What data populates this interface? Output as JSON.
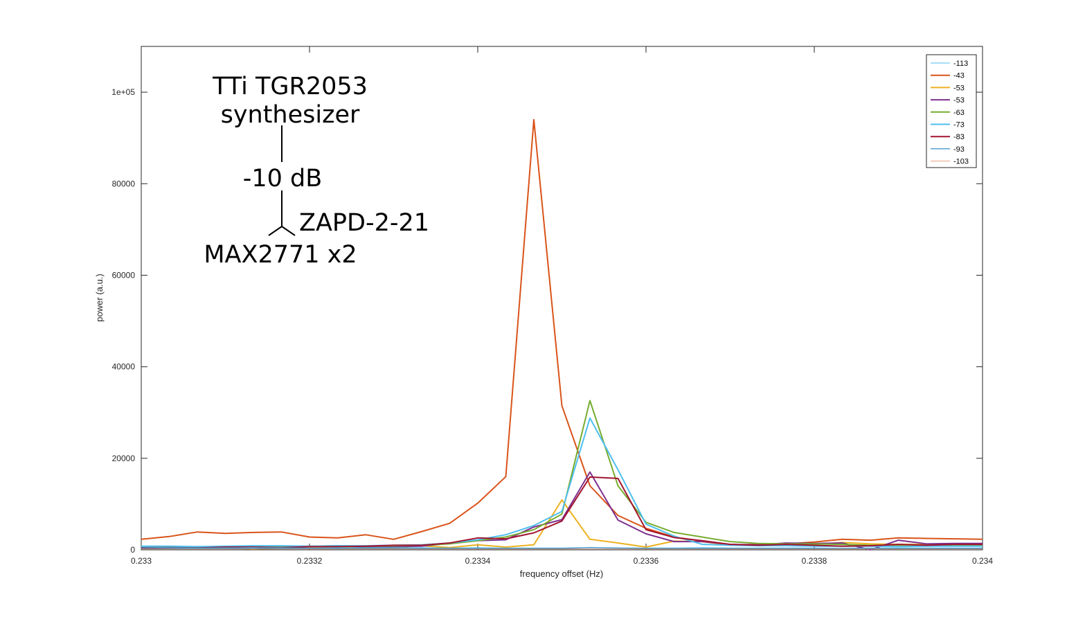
{
  "chart_data": {
    "type": "line",
    "xlabel": "frequency offset (Hz)",
    "ylabel": "power (a.u.)",
    "xlim": [
      0.233,
      0.234
    ],
    "ylim": [
      0,
      110000
    ],
    "x_ticks": [
      0.233,
      0.2332,
      0.2334,
      0.2336,
      0.2338,
      0.234
    ],
    "x_tick_labels": [
      "0.233",
      "0.2332",
      "0.2334",
      "0.2336",
      "0.2338",
      "0.234"
    ],
    "y_ticks": [
      0,
      20000,
      40000,
      60000,
      80000,
      100000
    ],
    "y_tick_labels": [
      "0",
      "20000",
      "40000",
      "60000",
      "80000",
      "1e+05"
    ],
    "grid": false,
    "legend_position": "top-right",
    "x": [
      0.233,
      0.2330333,
      0.2330667,
      0.2331,
      0.2331333,
      0.2331667,
      0.2332,
      0.2332333,
      0.2332667,
      0.2333,
      0.2333333,
      0.2333667,
      0.2334,
      0.2334333,
      0.2334667,
      0.2335,
      0.2335333,
      0.2335667,
      0.2336,
      0.2336333,
      0.2336667,
      0.2337,
      0.2337333,
      0.2337667,
      0.2338,
      0.2338333,
      0.2338667,
      0.2339,
      0.2339333,
      0.2339667,
      0.234
    ],
    "series": [
      {
        "name": "-113",
        "color": "#4dbeee",
        "width": 1,
        "values": [
          600,
          500,
          400,
          450,
          500,
          450,
          400,
          450,
          500,
          500,
          450,
          400,
          450,
          400,
          400,
          400,
          450,
          400,
          400,
          400,
          450,
          400,
          400,
          400,
          400,
          350,
          400,
          400,
          400,
          400,
          400
        ]
      },
      {
        "name": "-43",
        "color": "#d95319",
        "width": 2,
        "values": [
          2300,
          2900,
          3900,
          3600,
          3800,
          3900,
          2800,
          2600,
          3300,
          2300,
          4000,
          5800,
          10200,
          16000,
          94000,
          31500,
          14000,
          7500,
          4700,
          2800,
          1900,
          1100,
          1200,
          1300,
          1700,
          2300,
          2100,
          2600,
          2500,
          2400,
          2300
        ]
      },
      {
        "name": "-53",
        "color": "#edb120",
        "width": 2,
        "values": [
          500,
          300,
          500,
          400,
          200,
          300,
          500,
          600,
          400,
          500,
          900,
          500,
          1100,
          600,
          1100,
          10900,
          2300,
          1500,
          600,
          1900,
          1800,
          1000,
          1100,
          1200,
          1200,
          1600,
          1300,
          1200,
          1200,
          1200,
          1200
        ]
      },
      {
        "name": "-53",
        "color": "#7e2f8e",
        "width": 2,
        "values": [
          600,
          400,
          700,
          500,
          600,
          300,
          700,
          900,
          600,
          700,
          800,
          1400,
          2000,
          2200,
          5000,
          6600,
          17000,
          6500,
          3500,
          1800,
          1800,
          1200,
          1100,
          1500,
          1400,
          1500,
          0,
          2100,
          1300,
          1400,
          1400
        ]
      },
      {
        "name": "-63",
        "color": "#77ac30",
        "width": 2,
        "values": [
          700,
          600,
          500,
          700,
          800,
          700,
          800,
          900,
          800,
          900,
          1000,
          1300,
          2000,
          2800,
          4400,
          7800,
          32600,
          14000,
          6000,
          3800,
          2800,
          1800,
          1400,
          1300,
          1300,
          1200,
          1000,
          1000,
          1000,
          1000,
          1000
        ]
      },
      {
        "name": "-73",
        "color": "#4dbeee",
        "width": 2,
        "values": [
          800,
          800,
          700,
          800,
          900,
          900,
          800,
          900,
          900,
          1000,
          1100,
          1500,
          2200,
          3300,
          5300,
          8400,
          28800,
          17500,
          5600,
          3000,
          1200,
          1000,
          900,
          900,
          800,
          800,
          800,
          700,
          800,
          800,
          800
        ]
      },
      {
        "name": "-83",
        "color": "#a2142f",
        "width": 2,
        "values": [
          500,
          500,
          400,
          600,
          600,
          500,
          700,
          700,
          800,
          1000,
          1000,
          1500,
          2600,
          2400,
          3700,
          6300,
          15900,
          15600,
          4400,
          2700,
          2000,
          1200,
          1000,
          1200,
          1000,
          800,
          900,
          1200,
          1000,
          1200,
          1200
        ]
      },
      {
        "name": "-93",
        "color": "#0072bd",
        "width": 1,
        "values": [
          300,
          300,
          300,
          300,
          300,
          300,
          300,
          300,
          300,
          300,
          300,
          300,
          300,
          300,
          300,
          300,
          500,
          400,
          300,
          300,
          300,
          300,
          300,
          300,
          300,
          300,
          300,
          300,
          300,
          300,
          300
        ]
      },
      {
        "name": "-103",
        "color": "#e8a080",
        "width": 1,
        "values": [
          200,
          200,
          200,
          200,
          200,
          200,
          200,
          200,
          200,
          200,
          200,
          200,
          200,
          200,
          200,
          200,
          200,
          200,
          200,
          200,
          200,
          200,
          200,
          200,
          200,
          200,
          200,
          200,
          200,
          200,
          200
        ]
      }
    ],
    "annotations": {
      "line1": "TTi TGR2053",
      "line2": "synthesizer",
      "attenuator": "-10 dB",
      "splitter": "ZAPD-2-21",
      "receiver": "MAX2771 x2"
    }
  }
}
